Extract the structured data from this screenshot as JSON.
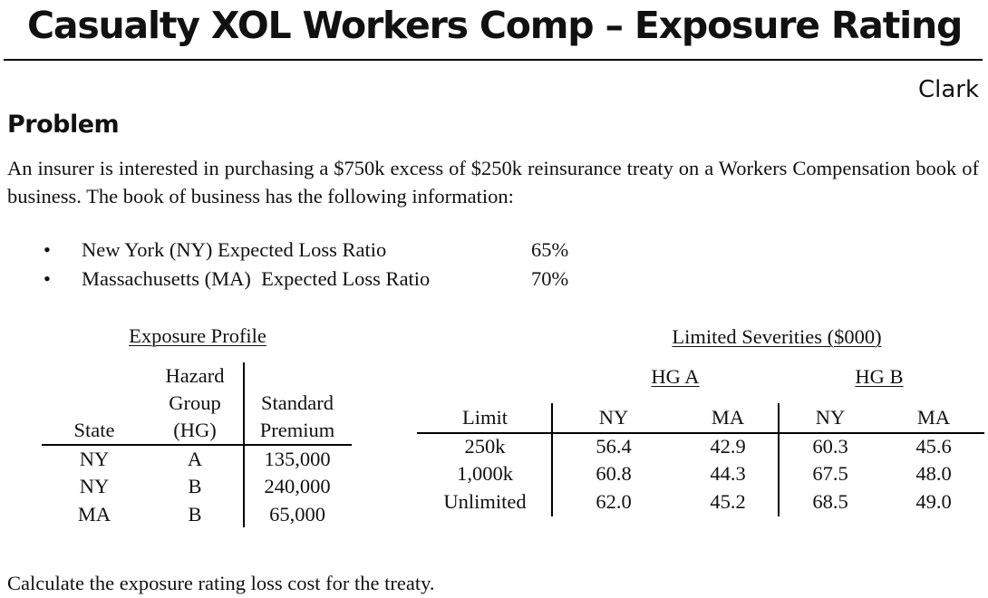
{
  "title": "Casualty XOL Workers Comp – Exposure Rating",
  "author": "Clark",
  "problem_heading": "Problem",
  "intro": "An insurer is interested in purchasing a $750k excess of $250k reinsurance treaty on a Workers Compensation book of business. The book of business has the following information:",
  "bullet_symbol": "•",
  "bullets": [
    {
      "label": "New York (NY) Expected Loss Ratio",
      "value": "65%"
    },
    {
      "label": "Massachusetts (MA)  Expected Loss Ratio",
      "value": "70%"
    }
  ],
  "exposure_profile": {
    "caption": "Exposure Profile",
    "headers": {
      "state": "State",
      "hazard_group": [
        "Hazard",
        "Group",
        "(HG)"
      ],
      "premium": [
        "Standard",
        "Premium"
      ]
    },
    "rows": [
      {
        "state": "NY",
        "hg": "A",
        "premium": "135,000"
      },
      {
        "state": "NY",
        "hg": "B",
        "premium": "240,000"
      },
      {
        "state": "MA",
        "hg": "B",
        "premium": "65,000"
      }
    ]
  },
  "limited_severities": {
    "caption": "Limited Severities ($000)",
    "group_headers": [
      "HG A",
      "HG B"
    ],
    "headers": [
      "Limit",
      "NY",
      "MA",
      "NY",
      "MA"
    ],
    "rows": [
      {
        "limit": "250k",
        "a_ny": "56.4",
        "a_ma": "42.9",
        "b_ny": "60.3",
        "b_ma": "45.6"
      },
      {
        "limit": "1,000k",
        "a_ny": "60.8",
        "a_ma": "44.3",
        "b_ny": "67.5",
        "b_ma": "48.0"
      },
      {
        "limit": "Unlimited",
        "a_ny": "62.0",
        "a_ma": "45.2",
        "b_ny": "68.5",
        "b_ma": "49.0"
      }
    ]
  },
  "question": "Calculate the exposure rating loss cost for the treaty."
}
